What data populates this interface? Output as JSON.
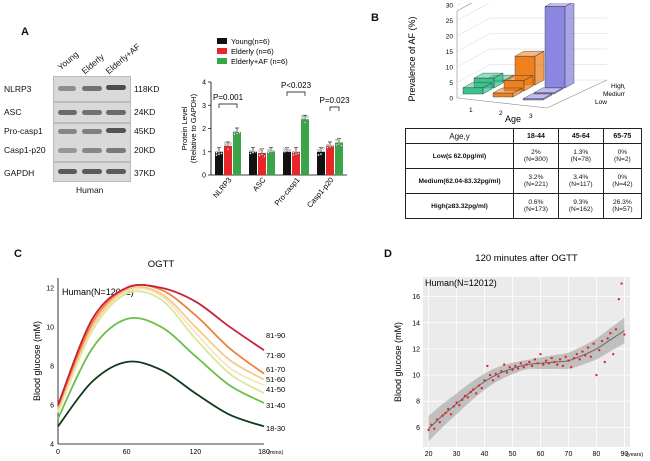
{
  "panelA": {
    "letter": "A",
    "lanes": [
      "Young",
      "Elderly",
      "Elderly+AF"
    ],
    "rows": [
      {
        "label": "NLRP3",
        "kd": "118KD"
      },
      {
        "label": "ASC",
        "kd": "24KD"
      },
      {
        "label": "Pro-casp1",
        "kd": "45KD"
      },
      {
        "label": "Casp1-p20",
        "kd": "20KD"
      },
      {
        "label": "GAPDH",
        "kd": "37KD"
      }
    ],
    "species": "Human"
  },
  "panelB": {
    "letter": "B",
    "table": {
      "headers": [
        "Age,y",
        "18-44",
        "45-64",
        "65-75"
      ],
      "rows": [
        {
          "label": "Low(≤ 62.0pg/ml)",
          "cells": [
            [
              "2%",
              "(N=300)"
            ],
            [
              "1.3%",
              "(N=78)"
            ],
            [
              "0%",
              "(N=2)"
            ]
          ]
        },
        {
          "label": "Medium(62.04-83.32pg/ml)",
          "cells": [
            [
              "3.2%",
              "(N=221)"
            ],
            [
              "3.4%",
              "(N=117)"
            ],
            [
              "0%",
              "(N=42)"
            ]
          ]
        },
        {
          "label": "High(≥83.32pg/ml)",
          "cells": [
            [
              "0.6%",
              "(N=173)"
            ],
            [
              "9.3%",
              "(N=162)"
            ],
            [
              "26.3%",
              "(N=57)"
            ]
          ]
        }
      ]
    }
  },
  "panelC": {
    "letter": "C",
    "note": "Human(N=12012)"
  },
  "panelD": {
    "letter": "D",
    "note": "Human(N=12012)"
  },
  "chart_data": [
    {
      "type": "bar",
      "panel": "A",
      "ylabel": "Protein Level (Relative to GAPDH)",
      "ylim": [
        0,
        4
      ],
      "yticks": [
        0,
        1,
        2,
        3,
        4
      ],
      "categories": [
        "NLRP3",
        "ASC",
        "Pro-casp1",
        "Casp1-p20"
      ],
      "series": [
        {
          "name": "Young(n=6)",
          "color": "#111111",
          "values": [
            1.0,
            1.0,
            1.0,
            1.0
          ]
        },
        {
          "name": "Elderly (n=6)",
          "color": "#e8262a",
          "values": [
            1.25,
            0.95,
            1.0,
            1.25
          ]
        },
        {
          "name": "Elderly+AF (n=6)",
          "color": "#3aa548",
          "values": [
            1.85,
            1.0,
            2.4,
            1.4
          ]
        }
      ],
      "annotations": [
        "P=0.001",
        "P<0.023",
        "P=0.023"
      ]
    },
    {
      "type": "bar3d",
      "panel": "B",
      "zlabel": "Prevalence of AF (%)",
      "xlabel": "Age",
      "ylabel": "LPS",
      "zticks": [
        0,
        5,
        10,
        15,
        20,
        25,
        30
      ],
      "age_ticks": [
        "1",
        "2",
        "3"
      ],
      "lps_ticks": [
        "High",
        "Medium",
        "Low"
      ],
      "groups": [
        {
          "age": "1",
          "color": "#3cc28e",
          "values": {
            "Low": 2,
            "Medium": 3.2,
            "High": 0.6
          }
        },
        {
          "age": "2",
          "color": "#f07f1e",
          "values": {
            "Low": 1.3,
            "Medium": 3.4,
            "High": 9.3
          }
        },
        {
          "age": "3",
          "color": "#8b86e0",
          "values": {
            "Low": 0,
            "Medium": 0,
            "High": 26.3
          }
        }
      ]
    },
    {
      "type": "line",
      "panel": "C",
      "title": "OGTT",
      "ylabel": "Blood glucose (mM)",
      "xunit": "(mins)",
      "xlim": [
        0,
        180
      ],
      "ylim": [
        4,
        12.5
      ],
      "xticks": [
        0,
        60,
        120,
        180
      ],
      "yticks": [
        4,
        6,
        8,
        10,
        12
      ],
      "x": [
        0,
        30,
        60,
        90,
        120,
        150,
        180
      ],
      "series": [
        {
          "name": "18-30",
          "color": "#0f3b1c",
          "values": [
            4.9,
            7.2,
            8.2,
            7.8,
            6.6,
            5.5,
            4.9
          ]
        },
        {
          "name": "31-40",
          "color": "#6bbf4a",
          "values": [
            5.3,
            8.9,
            10.4,
            10.0,
            8.5,
            7.0,
            6.1
          ]
        },
        {
          "name": "41-50",
          "color": "#d6e89a",
          "values": [
            5.6,
            9.8,
            11.7,
            11.4,
            9.4,
            7.6,
            6.6
          ]
        },
        {
          "name": "51-60",
          "color": "#f4e6c0",
          "values": [
            5.7,
            9.9,
            11.8,
            11.6,
            9.7,
            7.9,
            7.0
          ]
        },
        {
          "name": "61-70",
          "color": "#f7c98a",
          "values": [
            5.8,
            10.0,
            11.9,
            11.7,
            10.0,
            8.3,
            7.3
          ]
        },
        {
          "name": "71-80",
          "color": "#ef8040",
          "values": [
            5.9,
            10.2,
            12.0,
            11.9,
            10.6,
            8.9,
            7.6
          ]
        },
        {
          "name": "81-90",
          "color": "#c6213a",
          "values": [
            6.0,
            10.4,
            12.0,
            12.0,
            11.3,
            10.0,
            8.8
          ]
        }
      ]
    },
    {
      "type": "scatter",
      "panel": "D",
      "title": "120 minutes after OGTT",
      "ylabel": "Blood glucose (mM)",
      "xunit": "(years)",
      "xlim": [
        18,
        92
      ],
      "ylim": [
        4.5,
        17.5
      ],
      "xticks": [
        20,
        30,
        40,
        50,
        60,
        70,
        80,
        90
      ],
      "yticks": [
        6,
        8,
        10,
        12,
        14,
        16
      ],
      "points": [
        [
          20,
          5.8
        ],
        [
          21,
          6.2
        ],
        [
          22,
          5.9
        ],
        [
          23,
          6.6
        ],
        [
          24,
          6.4
        ],
        [
          25,
          6.9
        ],
        [
          26,
          7.1
        ],
        [
          27,
          7.4
        ],
        [
          28,
          7.0
        ],
        [
          29,
          7.6
        ],
        [
          30,
          7.9
        ],
        [
          31,
          7.7
        ],
        [
          32,
          8.1
        ],
        [
          33,
          8.4
        ],
        [
          34,
          8.3
        ],
        [
          35,
          8.7
        ],
        [
          36,
          8.9
        ],
        [
          37,
          8.6
        ],
        [
          38,
          9.2
        ],
        [
          39,
          9.0
        ],
        [
          40,
          9.6
        ],
        [
          41,
          10.7
        ],
        [
          42,
          10.0
        ],
        [
          43,
          9.6
        ],
        [
          44,
          10.1
        ],
        [
          45,
          9.9
        ],
        [
          46,
          10.3
        ],
        [
          47,
          10.8
        ],
        [
          48,
          10.2
        ],
        [
          49,
          10.6
        ],
        [
          50,
          10.4
        ],
        [
          51,
          10.7
        ],
        [
          52,
          10.5
        ],
        [
          53,
          10.9
        ],
        [
          54,
          10.6
        ],
        [
          55,
          10.8
        ],
        [
          56,
          11.0
        ],
        [
          57,
          10.7
        ],
        [
          58,
          11.2
        ],
        [
          59,
          10.9
        ],
        [
          60,
          11.6
        ],
        [
          61,
          10.8
        ],
        [
          62,
          11.1
        ],
        [
          63,
          10.9
        ],
        [
          64,
          11.3
        ],
        [
          65,
          11.0
        ],
        [
          66,
          10.8
        ],
        [
          67,
          11.2
        ],
        [
          68,
          10.7
        ],
        [
          69,
          11.4
        ],
        [
          70,
          11.1
        ],
        [
          71,
          10.6
        ],
        [
          72,
          11.3
        ],
        [
          73,
          11.6
        ],
        [
          74,
          11.2
        ],
        [
          75,
          11.8
        ],
        [
          76,
          11.5
        ],
        [
          77,
          12.1
        ],
        [
          78,
          11.4
        ],
        [
          79,
          12.4
        ],
        [
          80,
          10.0
        ],
        [
          81,
          11.9
        ],
        [
          82,
          12.6
        ],
        [
          83,
          11.0
        ],
        [
          84,
          12.8
        ],
        [
          85,
          13.2
        ],
        [
          86,
          11.6
        ],
        [
          87,
          13.5
        ],
        [
          88,
          15.8
        ],
        [
          89,
          17.0
        ],
        [
          90,
          13.1
        ]
      ],
      "trend": [
        [
          20,
          5.9
        ],
        [
          25,
          6.9
        ],
        [
          30,
          7.8
        ],
        [
          35,
          8.7
        ],
        [
          40,
          9.5
        ],
        [
          45,
          10.1
        ],
        [
          50,
          10.5
        ],
        [
          55,
          10.8
        ],
        [
          60,
          10.9
        ],
        [
          65,
          11.0
        ],
        [
          70,
          11.1
        ],
        [
          75,
          11.5
        ],
        [
          80,
          12.0
        ],
        [
          85,
          12.7
        ],
        [
          90,
          13.4
        ]
      ]
    }
  ]
}
